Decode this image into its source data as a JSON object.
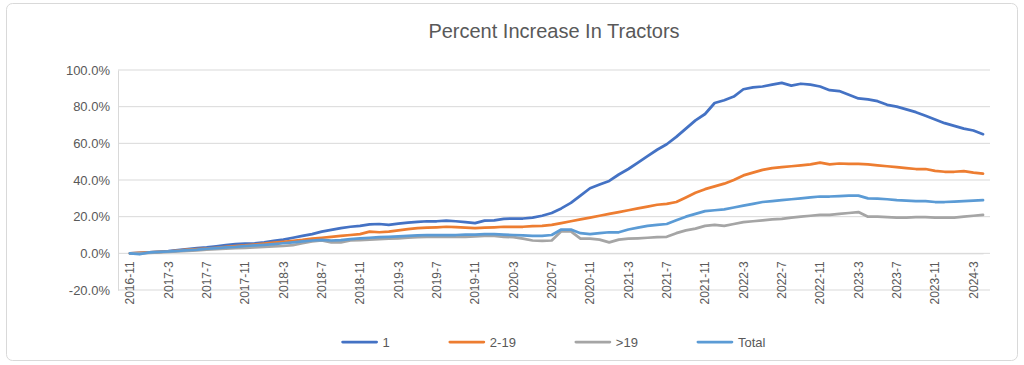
{
  "chart_data": {
    "type": "line",
    "title": "Percent Increase In Tractors",
    "categories": [
      "2016-11",
      null,
      null,
      null,
      "2017-3",
      null,
      null,
      null,
      "2017-7",
      null,
      null,
      null,
      "2017-11",
      null,
      null,
      null,
      "2018-3",
      null,
      null,
      null,
      "2018-7",
      null,
      null,
      null,
      "2018-11",
      null,
      null,
      null,
      "2019-3",
      null,
      null,
      null,
      "2019-7",
      null,
      null,
      null,
      "2019-11",
      null,
      null,
      null,
      "2020-3",
      null,
      null,
      null,
      "2020-7",
      null,
      null,
      null,
      "2020-11",
      null,
      null,
      null,
      "2021-3",
      null,
      null,
      null,
      "2021-7",
      null,
      null,
      null,
      "2021-11",
      null,
      null,
      null,
      "2022-3",
      null,
      null,
      null,
      "2022-7",
      null,
      null,
      null,
      "2022-11",
      null,
      null,
      null,
      "2023-3",
      null,
      null,
      null,
      "2023-7",
      null,
      null,
      null,
      "2023-11",
      null,
      null,
      null,
      "2024-3",
      null
    ],
    "series": [
      {
        "name": "1",
        "color": "#4472c4",
        "values": [
          0,
          0.3,
          0.5,
          0.8,
          1.2,
          1.8,
          2.3,
          2.8,
          3.2,
          3.8,
          4.5,
          5.0,
          5.3,
          5.5,
          6.0,
          6.8,
          7.5,
          8.5,
          9.5,
          10.5,
          11.8,
          12.8,
          13.8,
          14.5,
          15.0,
          15.8,
          16.0,
          15.5,
          16.2,
          16.8,
          17.2,
          17.5,
          17.5,
          17.8,
          17.5,
          17.0,
          16.5,
          17.8,
          18.0,
          18.8,
          19.0,
          19.0,
          19.5,
          20.5,
          22.0,
          24.5,
          27.5,
          31.5,
          35.5,
          37.5,
          39.5,
          43.0,
          46.0,
          49.5,
          53.0,
          56.5,
          59.5,
          63.5,
          68.0,
          72.5,
          76.0,
          82.0,
          83.5,
          85.5,
          89.5,
          90.5,
          91.0,
          92.0,
          93.0,
          91.5,
          92.5,
          92.0,
          91.0,
          89.0,
          88.5,
          86.5,
          84.5,
          84.0,
          83.0,
          81.0,
          80.0,
          78.5,
          77.0,
          75.0,
          73.0,
          71.0,
          69.5,
          68.0,
          67.0,
          65.0
        ]
      },
      {
        "name": "2-19",
        "color": "#ed7d31",
        "values": [
          0,
          0.2,
          0.5,
          0.8,
          1.0,
          1.5,
          2.0,
          2.3,
          2.6,
          3.0,
          3.5,
          4.0,
          4.3,
          4.8,
          5.3,
          5.8,
          6.3,
          6.8,
          7.3,
          8.0,
          8.5,
          9.0,
          9.5,
          10.0,
          10.5,
          11.8,
          11.5,
          11.8,
          12.5,
          13.2,
          13.8,
          14.0,
          14.2,
          14.5,
          14.3,
          14.0,
          13.8,
          14.0,
          14.2,
          14.5,
          14.5,
          14.5,
          14.8,
          15.0,
          15.5,
          16.5,
          17.5,
          18.5,
          19.5,
          20.5,
          21.5,
          22.5,
          23.5,
          24.5,
          25.5,
          26.5,
          27.0,
          28.0,
          30.5,
          33.0,
          35.0,
          36.5,
          38.0,
          40.0,
          42.5,
          44.0,
          45.5,
          46.5,
          47.0,
          47.5,
          48.0,
          48.5,
          49.5,
          48.5,
          49.0,
          48.8,
          48.8,
          48.5,
          48.0,
          47.5,
          47.0,
          46.5,
          46.0,
          46.0,
          45.0,
          44.5,
          44.5,
          44.8,
          44.0,
          43.5
        ]
      },
      {
        "name": ">19",
        "color": "#a5a5a5",
        "values": [
          0,
          0,
          0.3,
          0.5,
          0.8,
          1.0,
          1.3,
          1.6,
          2.0,
          2.3,
          2.6,
          2.8,
          3.0,
          3.2,
          3.5,
          3.8,
          4.0,
          4.5,
          5.5,
          6.5,
          7.0,
          6.0,
          6.0,
          7.0,
          7.2,
          7.5,
          7.8,
          8.0,
          8.2,
          8.5,
          8.8,
          9.0,
          9.0,
          9.0,
          9.0,
          9.0,
          9.2,
          9.5,
          9.5,
          9.0,
          8.8,
          8.0,
          7.0,
          6.8,
          7.0,
          12.0,
          12.0,
          8.0,
          8.0,
          7.5,
          6.0,
          7.5,
          8.0,
          8.2,
          8.5,
          8.8,
          9.0,
          11.0,
          12.5,
          13.5,
          15.0,
          15.5,
          15.0,
          16.0,
          17.0,
          17.5,
          18.0,
          18.5,
          18.8,
          19.5,
          20.0,
          20.5,
          21.0,
          21.0,
          21.5,
          22.0,
          22.5,
          20.0,
          20.0,
          19.8,
          19.5,
          19.5,
          19.8,
          19.8,
          19.5,
          19.5,
          19.5,
          20.0,
          20.5,
          21.0
        ]
      },
      {
        "name": "Total",
        "color": "#5b9bd5",
        "values": [
          0,
          -0.5,
          0.5,
          0.8,
          1.0,
          1.3,
          1.7,
          2.0,
          2.5,
          2.8,
          3.2,
          3.5,
          4.0,
          4.3,
          4.6,
          5.0,
          5.5,
          6.0,
          6.5,
          7.0,
          7.3,
          7.0,
          7.2,
          7.8,
          8.2,
          8.5,
          8.8,
          9.0,
          9.2,
          9.5,
          9.8,
          10.0,
          10.0,
          10.0,
          10.0,
          10.2,
          10.2,
          10.5,
          10.5,
          10.2,
          10.0,
          9.8,
          9.5,
          9.5,
          10.0,
          13.0,
          13.0,
          11.0,
          10.5,
          11.0,
          11.5,
          11.5,
          13.0,
          14.0,
          15.0,
          15.5,
          16.0,
          18.0,
          20.0,
          21.5,
          23.0,
          23.5,
          24.0,
          25.0,
          26.0,
          27.0,
          28.0,
          28.5,
          29.0,
          29.5,
          30.0,
          30.5,
          31.0,
          31.0,
          31.2,
          31.5,
          31.5,
          30.0,
          29.8,
          29.5,
          29.0,
          28.8,
          28.5,
          28.5,
          28.0,
          28.0,
          28.2,
          28.5,
          28.8,
          29.0
        ]
      }
    ],
    "ylim": [
      -20,
      100
    ],
    "yticks": [
      {
        "value": -20,
        "label": "-20.0%"
      },
      {
        "value": 0,
        "label": "0.0%"
      },
      {
        "value": 20,
        "label": "20.0%"
      },
      {
        "value": 40,
        "label": "40.0%"
      },
      {
        "value": 60,
        "label": "60.0%"
      },
      {
        "value": 80,
        "label": "80.0%"
      },
      {
        "value": 100,
        "label": "100.0%"
      }
    ],
    "grid": true,
    "legend": "bottom"
  }
}
